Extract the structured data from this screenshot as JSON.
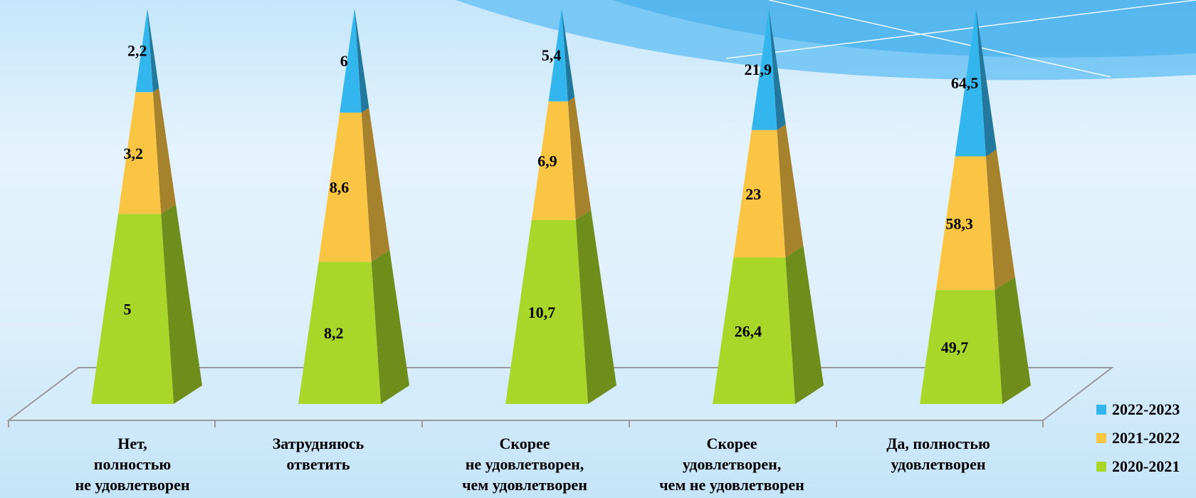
{
  "chart_data": {
    "type": "bar",
    "categories": [
      "Нет,\nполностью\nне удовлетворен",
      "Затрудняюсь\nответить",
      "Скорее\nне удовлетворен,\nчем удовлетворен",
      "Скорее\nудовлетворен,\nчем не удовлетворен",
      "Да, полностью\nудовлетворен"
    ],
    "series": [
      {
        "name": "2020-2021",
        "values": [
          5,
          8.2,
          10.7,
          26.4,
          49.7
        ],
        "labels": [
          "5",
          "8,2",
          "10,7",
          "26,4",
          "49,7"
        ]
      },
      {
        "name": "2021-2022",
        "values": [
          3.2,
          8.6,
          6.9,
          23,
          58.3
        ],
        "labels": [
          "3,2",
          "8,6",
          "6,9",
          "23",
          "58,3"
        ]
      },
      {
        "name": "2022-2023",
        "values": [
          2.2,
          6,
          5.4,
          21.9,
          64.5
        ],
        "labels": [
          "2,2",
          "6",
          "5,4",
          "21,9",
          "64,5"
        ]
      }
    ],
    "stacked": true,
    "shape": "3d-pyramid",
    "legend_position": "right-bottom",
    "title": "",
    "xlabel": "",
    "ylabel": ""
  },
  "colors": {
    "2020-2021": "#a8d629",
    "2021-2022": "#fbc544",
    "2022-2023": "#33b6ee"
  }
}
